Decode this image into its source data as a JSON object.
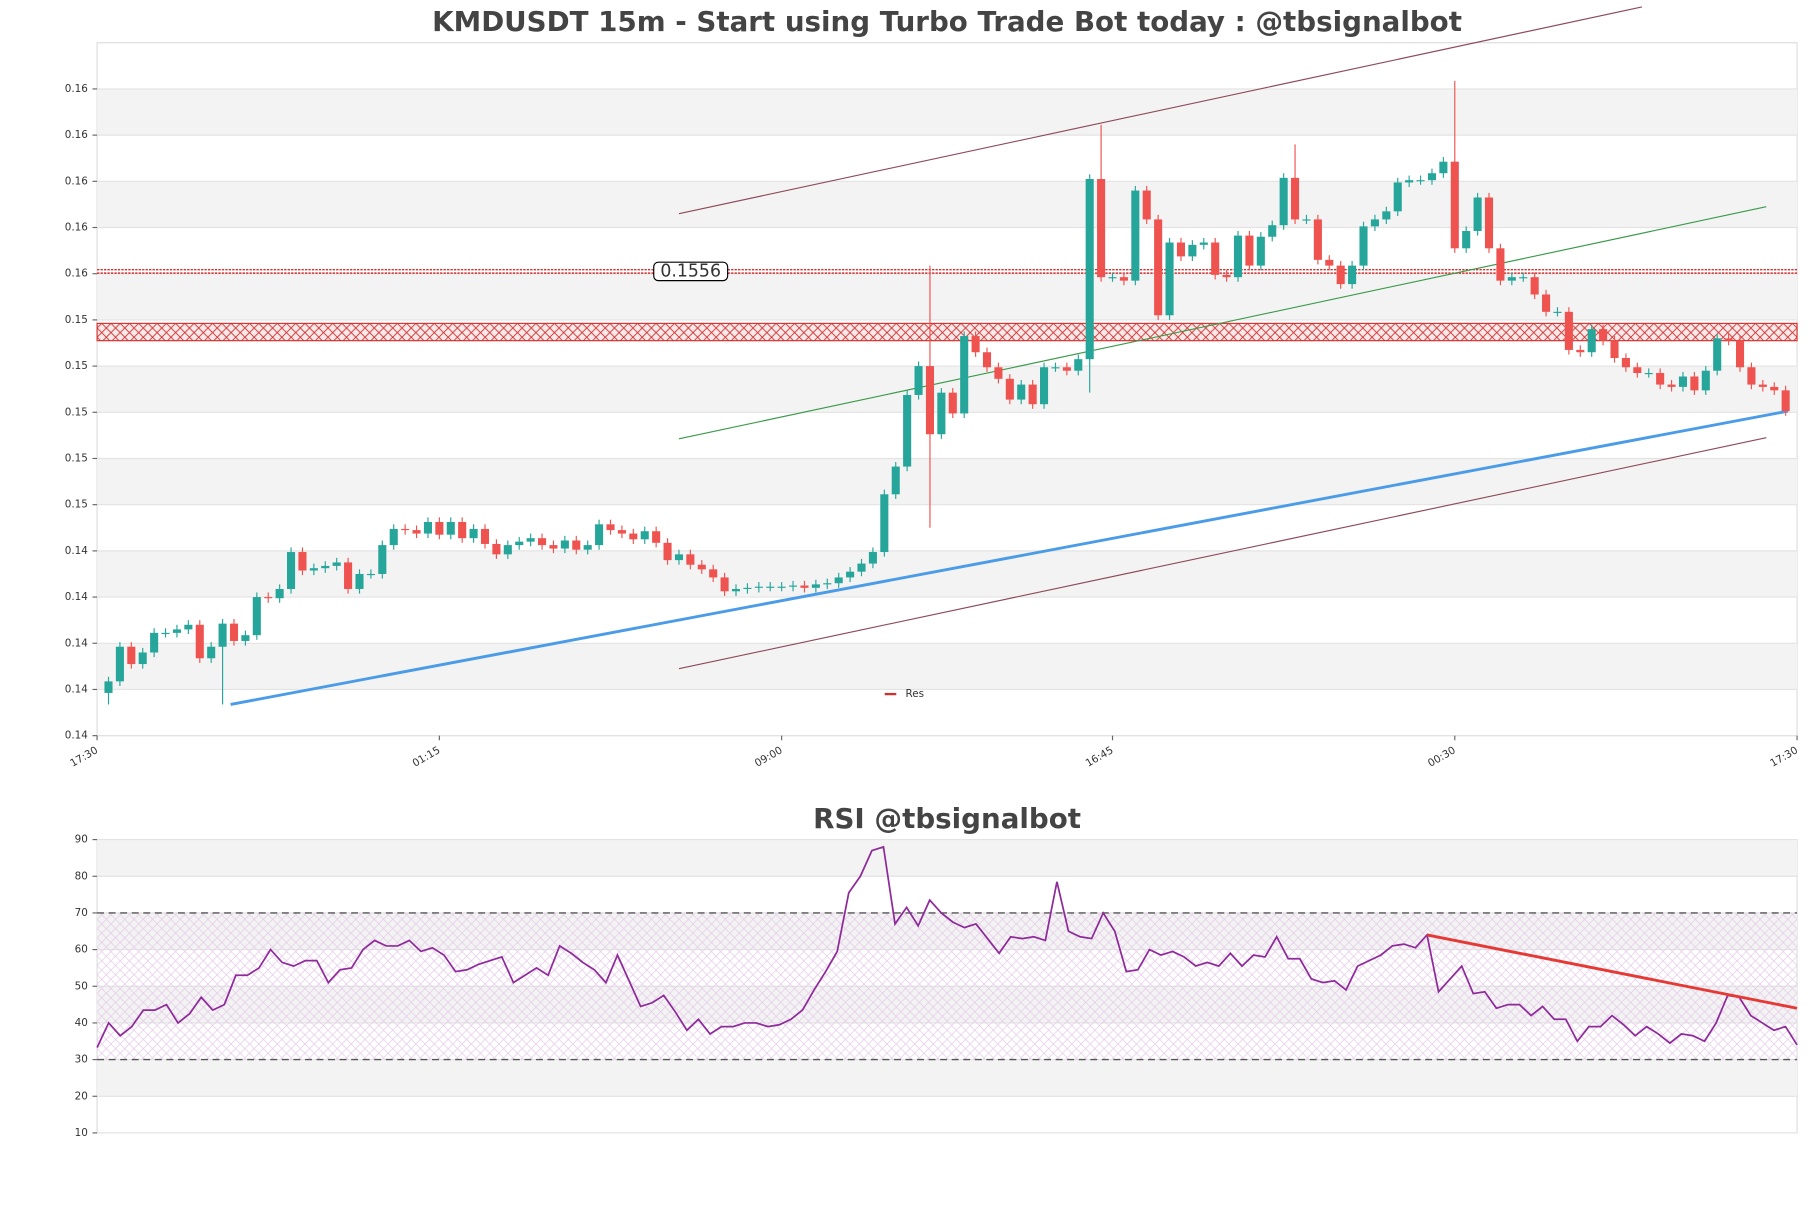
{
  "chart_data": [
    {
      "type": "candlestick",
      "title": "KMDUSDT 15m - Start using Turbo Trade Bot today : @tbsignalbot",
      "up_color": "#26a69a",
      "down_color": "#ef5350",
      "grid": true,
      "legend": "lower center",
      "xlim": [
        -1,
        148
      ],
      "xticks": [
        {
          "value": -1,
          "label": "17:30"
        },
        {
          "value": 29,
          "label": "01:15"
        },
        {
          "value": 59,
          "label": "09:00"
        },
        {
          "value": 88,
          "label": "16:45"
        },
        {
          "value": 118,
          "label": "00:30"
        },
        {
          "value": 148,
          "label": "17:30"
        }
      ],
      "ylim": [
        0.1355,
        0.1655
      ],
      "yticks": [
        {
          "value": 0.1355,
          "label": "0.14"
        },
        {
          "value": 0.1375,
          "label": "0.14"
        },
        {
          "value": 0.1395,
          "label": "0.14"
        },
        {
          "value": 0.1415,
          "label": "0.14"
        },
        {
          "value": 0.1435,
          "label": "0.14"
        },
        {
          "value": 0.1455,
          "label": "0.15"
        },
        {
          "value": 0.1475,
          "label": "0.15"
        },
        {
          "value": 0.1495,
          "label": "0.15"
        },
        {
          "value": 0.1515,
          "label": "0.15"
        },
        {
          "value": 0.1535,
          "label": "0.15"
        },
        {
          "value": 0.1555,
          "label": "0.16"
        },
        {
          "value": 0.1575,
          "label": "0.16"
        },
        {
          "value": 0.1595,
          "label": "0.16"
        },
        {
          "value": 0.1615,
          "label": "0.16"
        },
        {
          "value": 0.1635,
          "label": "0.16"
        }
      ],
      "open": [
        0.13735,
        0.13785,
        0.13935,
        0.1386,
        0.1391,
        0.13995,
        0.13995,
        0.1401,
        0.1403,
        0.13885,
        0.13935,
        0.14035,
        0.1396,
        0.13985,
        0.1415,
        0.14145,
        0.14185,
        0.14345,
        0.14265,
        0.14275,
        0.14285,
        0.143,
        0.14185,
        0.1425,
        0.1425,
        0.14375,
        0.14445,
        0.1444,
        0.14425,
        0.14475,
        0.1442,
        0.14475,
        0.14405,
        0.14445,
        0.1438,
        0.14335,
        0.14375,
        0.1439,
        0.14405,
        0.14375,
        0.1436,
        0.14395,
        0.14355,
        0.14375,
        0.14465,
        0.1444,
        0.14425,
        0.144,
        0.14435,
        0.14385,
        0.1431,
        0.14335,
        0.1429,
        0.1427,
        0.14235,
        0.14175,
        0.14185,
        0.1419,
        0.14195,
        0.14195,
        0.14195,
        0.142,
        0.1419,
        0.14205,
        0.1421,
        0.14235,
        0.1426,
        0.14295,
        0.14345,
        0.14595,
        0.14715,
        0.15025,
        0.1515,
        0.14855,
        0.15035,
        0.14945,
        0.1528,
        0.1521,
        0.15145,
        0.15095,
        0.15005,
        0.1507,
        0.14985,
        0.15145,
        0.15145,
        0.1513,
        0.1518,
        0.1596,
        0.15535,
        0.15535,
        0.1552,
        0.1591,
        0.15785,
        0.1537,
        0.15685,
        0.15625,
        0.15675,
        0.15685,
        0.15545,
        0.15535,
        0.15715,
        0.15585,
        0.1571,
        0.1576,
        0.15965,
        0.15785,
        0.15785,
        0.1561,
        0.15585,
        0.15505,
        0.15585,
        0.15755,
        0.15785,
        0.1582,
        0.15945,
        0.15955,
        0.15955,
        0.15985,
        0.16035,
        0.1566,
        0.15735,
        0.1588,
        0.1566,
        0.1552,
        0.15535,
        0.15535,
        0.1546,
        0.15385,
        0.15385,
        0.1522,
        0.1521,
        0.1531,
        0.1526,
        0.15185,
        0.15145,
        0.1512,
        0.1512,
        0.1507,
        0.1506,
        0.15105,
        0.15045,
        0.1513,
        0.1527,
        0.1526,
        0.15145,
        0.1507,
        0.1506,
        0.15045
      ],
      "high": [
        0.13805,
        0.13955,
        0.13955,
        0.1393,
        0.14015,
        0.14015,
        0.1403,
        0.1405,
        0.1405,
        0.13955,
        0.14055,
        0.14055,
        0.14005,
        0.1417,
        0.1417,
        0.14205,
        0.14365,
        0.14365,
        0.14295,
        0.14305,
        0.1432,
        0.1432,
        0.1427,
        0.1427,
        0.14395,
        0.14465,
        0.14465,
        0.1446,
        0.14495,
        0.14495,
        0.14495,
        0.14495,
        0.14465,
        0.14465,
        0.144,
        0.14395,
        0.1441,
        0.14425,
        0.14425,
        0.14395,
        0.14415,
        0.14415,
        0.14395,
        0.14485,
        0.14485,
        0.1446,
        0.14445,
        0.14455,
        0.14455,
        0.14405,
        0.14355,
        0.14355,
        0.1431,
        0.1429,
        0.14255,
        0.14205,
        0.1421,
        0.14215,
        0.14215,
        0.14215,
        0.1422,
        0.1422,
        0.14225,
        0.1423,
        0.14255,
        0.1428,
        0.14315,
        0.14365,
        0.14615,
        0.14735,
        0.15045,
        0.1517,
        0.15585,
        0.15055,
        0.15055,
        0.153,
        0.153,
        0.1523,
        0.15165,
        0.15115,
        0.1509,
        0.1509,
        0.15165,
        0.15165,
        0.15165,
        0.152,
        0.1598,
        0.16195,
        0.15555,
        0.15555,
        0.1593,
        0.1593,
        0.15805,
        0.15705,
        0.15705,
        0.15695,
        0.15705,
        0.15705,
        0.15565,
        0.15735,
        0.15735,
        0.1573,
        0.1578,
        0.15985,
        0.1611,
        0.15805,
        0.15805,
        0.1563,
        0.15605,
        0.15605,
        0.15775,
        0.15805,
        0.1584,
        0.15965,
        0.15975,
        0.15975,
        0.16005,
        0.16055,
        0.16385,
        0.15755,
        0.159,
        0.159,
        0.1568,
        0.15555,
        0.15555,
        0.15555,
        0.1548,
        0.15405,
        0.15405,
        0.1524,
        0.1533,
        0.1533,
        0.1528,
        0.15205,
        0.15165,
        0.1514,
        0.1514,
        0.1509,
        0.15125,
        0.15125,
        0.1515,
        0.1529,
        0.1529,
        0.1528,
        0.15165,
        0.1509,
        0.1508,
        0.15065
      ],
      "low": [
        0.13685,
        0.13765,
        0.1384,
        0.1384,
        0.1389,
        0.13975,
        0.13975,
        0.1399,
        0.13865,
        0.13865,
        0.13685,
        0.1394,
        0.1394,
        0.13965,
        0.14125,
        0.14125,
        0.14165,
        0.14245,
        0.14245,
        0.14255,
        0.14265,
        0.14165,
        0.14165,
        0.1423,
        0.1423,
        0.14355,
        0.1442,
        0.14405,
        0.14405,
        0.144,
        0.144,
        0.14385,
        0.14385,
        0.1436,
        0.14315,
        0.14315,
        0.14355,
        0.1437,
        0.14355,
        0.1434,
        0.1434,
        0.14335,
        0.14335,
        0.14355,
        0.1442,
        0.14405,
        0.1438,
        0.1438,
        0.14365,
        0.1429,
        0.1429,
        0.1427,
        0.1425,
        0.14215,
        0.14155,
        0.14155,
        0.14165,
        0.1417,
        0.14175,
        0.14175,
        0.14175,
        0.1417,
        0.1417,
        0.14185,
        0.1419,
        0.14215,
        0.1424,
        0.14275,
        0.14325,
        0.14575,
        0.14695,
        0.15005,
        0.1445,
        0.14835,
        0.14925,
        0.14925,
        0.1519,
        0.15125,
        0.15075,
        0.14985,
        0.14985,
        0.14965,
        0.14965,
        0.15125,
        0.1511,
        0.1511,
        0.15035,
        0.15515,
        0.15515,
        0.155,
        0.155,
        0.15765,
        0.1535,
        0.1535,
        0.15605,
        0.15605,
        0.15655,
        0.15525,
        0.15515,
        0.15515,
        0.15565,
        0.15565,
        0.1569,
        0.1574,
        0.15765,
        0.15765,
        0.1559,
        0.15565,
        0.15485,
        0.15485,
        0.15565,
        0.15735,
        0.15765,
        0.158,
        0.15925,
        0.15935,
        0.15935,
        0.15965,
        0.1564,
        0.1564,
        0.15715,
        0.1564,
        0.155,
        0.155,
        0.15515,
        0.1544,
        0.15365,
        0.15365,
        0.152,
        0.1519,
        0.1519,
        0.1524,
        0.15165,
        0.15125,
        0.151,
        0.151,
        0.1505,
        0.1504,
        0.1504,
        0.15025,
        0.15025,
        0.1511,
        0.1524,
        0.15125,
        0.1505,
        0.1504,
        0.15025,
        0.14935
      ],
      "close": [
        0.13785,
        0.13935,
        0.1386,
        0.1391,
        0.13995,
        0.13995,
        0.1401,
        0.1403,
        0.13885,
        0.13935,
        0.14035,
        0.1396,
        0.13985,
        0.1415,
        0.14145,
        0.14185,
        0.14345,
        0.14265,
        0.14275,
        0.14285,
        0.143,
        0.14185,
        0.1425,
        0.1425,
        0.14375,
        0.14445,
        0.1444,
        0.14425,
        0.14475,
        0.1442,
        0.14475,
        0.14405,
        0.14445,
        0.1438,
        0.14335,
        0.14375,
        0.1439,
        0.14405,
        0.14375,
        0.1436,
        0.14395,
        0.14355,
        0.14375,
        0.14465,
        0.1444,
        0.14425,
        0.144,
        0.14435,
        0.14385,
        0.1431,
        0.14335,
        0.1429,
        0.1427,
        0.14235,
        0.14175,
        0.14185,
        0.1419,
        0.14195,
        0.14195,
        0.14195,
        0.142,
        0.1419,
        0.14205,
        0.1421,
        0.14235,
        0.1426,
        0.14295,
        0.14345,
        0.14595,
        0.14715,
        0.15025,
        0.1515,
        0.14855,
        0.15035,
        0.14945,
        0.1528,
        0.1521,
        0.15145,
        0.15095,
        0.15005,
        0.1507,
        0.14985,
        0.15145,
        0.15145,
        0.1513,
        0.1518,
        0.1596,
        0.15535,
        0.15535,
        0.1552,
        0.1591,
        0.15785,
        0.1537,
        0.15685,
        0.15625,
        0.15675,
        0.15685,
        0.15545,
        0.15535,
        0.15715,
        0.15585,
        0.1571,
        0.1576,
        0.15965,
        0.15785,
        0.15785,
        0.1561,
        0.15585,
        0.15505,
        0.15585,
        0.15755,
        0.15785,
        0.1582,
        0.15945,
        0.15955,
        0.15955,
        0.15985,
        0.16035,
        0.1566,
        0.15735,
        0.1588,
        0.1566,
        0.1552,
        0.15535,
        0.15535,
        0.1546,
        0.15385,
        0.15385,
        0.1522,
        0.1521,
        0.1531,
        0.1526,
        0.15185,
        0.15145,
        0.1512,
        0.1512,
        0.1507,
        0.1506,
        0.15105,
        0.15045,
        0.1513,
        0.1527,
        0.1526,
        0.15145,
        0.1507,
        0.1506,
        0.15045,
        0.14955
      ],
      "resistance": {
        "name": "Res",
        "color": "#d32f2f",
        "value": 0.1556,
        "zone": [
          0.1526,
          0.15335
        ]
      },
      "trendlines": [
        {
          "color": "#4a9be8",
          "width": 2.5,
          "x": [
            10.7,
            147.2
          ],
          "y": [
            0.13685,
            0.14955
          ]
        },
        {
          "color": "#8d4a5a",
          "width": 1,
          "x": [
            50,
            134.4
          ],
          "y": [
            0.1581,
            0.16705
          ]
        },
        {
          "color": "#3a9a4a",
          "width": 1,
          "x": [
            50,
            145.3
          ],
          "y": [
            0.14835,
            0.1584
          ]
        },
        {
          "color": "#8d4a5a",
          "width": 1,
          "x": [
            50,
            145.3
          ],
          "y": [
            0.1384,
            0.1484
          ]
        }
      ]
    },
    {
      "type": "line",
      "title": "RSI @tbsignalbot",
      "color": "#8e2a9a",
      "grid": true,
      "xlim": [
        0,
        147
      ],
      "ylim": [
        10,
        90
      ],
      "yticks": [
        10,
        20,
        30,
        40,
        50,
        60,
        70,
        80,
        90
      ],
      "levels": [
        30,
        70
      ],
      "values": [
        33.3,
        40,
        36.5,
        39,
        43.5,
        43.5,
        45,
        40,
        42.5,
        47,
        43.5,
        45,
        53,
        53,
        55,
        60,
        56.5,
        55.5,
        57,
        57,
        51,
        54.5,
        55,
        60,
        62.5,
        61,
        61,
        62.5,
        59.5,
        60.5,
        58.5,
        54,
        54.5,
        56,
        57,
        58,
        51,
        53,
        55,
        53,
        61,
        59,
        56.5,
        54.5,
        51,
        58.5,
        51.5,
        44.5,
        45.5,
        47.5,
        43,
        38,
        41,
        37,
        39,
        39,
        40,
        40,
        39,
        39.5,
        41,
        43.5,
        49,
        54,
        59.5,
        75.5,
        80,
        87,
        88,
        67,
        71.5,
        66.5,
        73.5,
        70,
        67.5,
        66,
        67,
        63,
        59,
        63.5,
        63,
        63.5,
        62.5,
        78.5,
        65,
        63.5,
        63,
        70,
        65,
        54,
        54.5,
        60,
        58.5,
        59.5,
        58,
        55.5,
        56.5,
        55.5,
        59,
        55.5,
        58.5,
        58,
        63.5,
        57.5,
        57.5,
        52,
        51,
        51.5,
        49,
        55.5,
        57,
        58.5,
        61,
        61.5,
        60.5,
        64,
        48.5,
        52,
        55.5,
        48,
        48.5,
        44,
        45,
        45,
        42,
        44.5,
        41,
        41,
        35,
        39,
        39,
        42,
        39.5,
        36.5,
        39,
        37,
        34.5,
        37,
        36.5,
        35,
        40,
        47.5,
        47,
        42,
        40,
        38,
        39,
        34
      ],
      "trendlines": [
        {
          "color": "#e53935",
          "width": 2.5,
          "x": [
            115,
            147
          ],
          "y": [
            64,
            44
          ]
        }
      ]
    }
  ]
}
